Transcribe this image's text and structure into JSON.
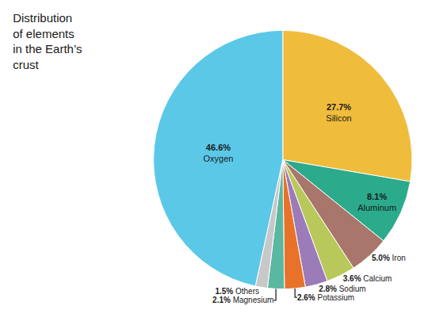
{
  "chart_data": {
    "type": "pie",
    "title": "Distribution\nof elements\nin the Earth’s\ncrust",
    "categories": [
      "Silicon",
      "Aluminum",
      "Iron",
      "Calcium",
      "Sodium",
      "Potassium",
      "Magnesium",
      "Others",
      "Oxygen"
    ],
    "values": [
      27.7,
      8.1,
      5.0,
      3.6,
      2.8,
      2.6,
      2.1,
      1.5,
      46.6
    ],
    "value_labels": [
      "27.7%",
      "8.1%",
      "5.0%",
      "3.6%",
      "2.8%",
      "2.6%",
      "2.1%",
      "1.5%",
      "46.6%"
    ],
    "colors": [
      "#F0BC3C",
      "#2BAA8C",
      "#A8766A",
      "#B8C85A",
      "#9B7BB8",
      "#E8722A",
      "#5BB8A0",
      "#C8C8C8",
      "#5BC8E8"
    ],
    "data_labels": true
  }
}
